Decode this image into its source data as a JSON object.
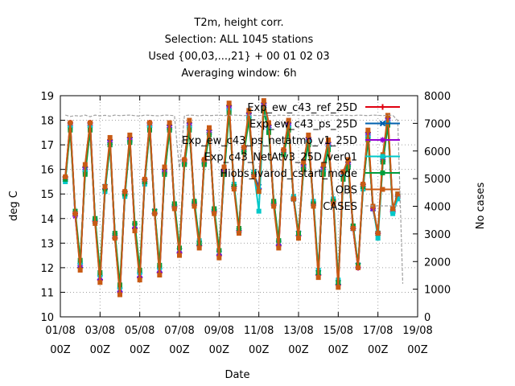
{
  "chart_data": {
    "type": "line",
    "title_lines": [
      "T2m, height corr.",
      "Selection: ALL    1045 stations",
      "Used {00,03,...,21} + 00 01 02 03",
      "Averaging window:  6h"
    ],
    "xlabel": "Date",
    "ylabel": "deg C",
    "y2label": "No cases",
    "ylim": [
      10,
      19
    ],
    "y2lim": [
      0,
      8000
    ],
    "yticks": [
      "10",
      "11",
      "12",
      "13",
      "14",
      "15",
      "16",
      "17",
      "18",
      "19"
    ],
    "y2ticks": [
      "0",
      "1000",
      "2000",
      "3000",
      "4000",
      "5000",
      "6000",
      "7000",
      "8000"
    ],
    "xticks": [
      {
        "date": "01/08",
        "hour": "00Z"
      },
      {
        "date": "03/08",
        "hour": "00Z"
      },
      {
        "date": "05/08",
        "hour": "00Z"
      },
      {
        "date": "07/08",
        "hour": "00Z"
      },
      {
        "date": "09/08",
        "hour": "00Z"
      },
      {
        "date": "11/08",
        "hour": "00Z"
      },
      {
        "date": "13/08",
        "hour": "00Z"
      },
      {
        "date": "15/08",
        "hour": "00Z"
      },
      {
        "date": "17/08",
        "hour": "00Z"
      },
      {
        "date": "19/08",
        "hour": "00Z"
      }
    ],
    "grid": true,
    "legend_position": "top-right",
    "x_unit": "hours since 01/08 00Z",
    "x": [
      6,
      12,
      18,
      24,
      30,
      36,
      42,
      48,
      54,
      60,
      66,
      72,
      78,
      84,
      90,
      96,
      102,
      108,
      114,
      120,
      126,
      132,
      138,
      144,
      150,
      156,
      162,
      168,
      174,
      180,
      186,
      192,
      198,
      204,
      210,
      216,
      222,
      228,
      234,
      240,
      246,
      252,
      258,
      264,
      270,
      276,
      282,
      288,
      294,
      300,
      306,
      312,
      318,
      324,
      330,
      336,
      342,
      348,
      354,
      360,
      366,
      372,
      378,
      384,
      390,
      396,
      402,
      408,
      414,
      420
    ],
    "series": [
      {
        "name": "Exp_ew_c43_ref_25D",
        "color": "#e0000f",
        "marker": "plus",
        "values": [
          15.7,
          17.9,
          14.2,
          12.0,
          16.1,
          17.9,
          13.9,
          11.5,
          15.2,
          17.2,
          13.2,
          11.0,
          15.1,
          17.3,
          13.6,
          11.6,
          15.6,
          17.9,
          14.2,
          11.8,
          16.0,
          17.8,
          14.5,
          12.6,
          16.4,
          17.9,
          14.6,
          12.9,
          16.4,
          17.6,
          14.3,
          12.5,
          16.0,
          18.6,
          15.3,
          13.5,
          16.9,
          18.3,
          15.8,
          15.2,
          18.7,
          17.8,
          14.6,
          12.9,
          16.8,
          17.9,
          14.8,
          13.3,
          16.2,
          17.3,
          14.6,
          11.7,
          16.1,
          17.1,
          14.7,
          11.3,
          15.9,
          16.3,
          13.6,
          12.0,
          15.4,
          17.5,
          14.4,
          13.4,
          16.5,
          18.1,
          14.3,
          14.9,
          null,
          null
        ]
      },
      {
        "name": "Exp_ew_c43_ps_25D",
        "color": "#0060ad",
        "marker": "cross",
        "values": [
          15.6,
          17.8,
          14.2,
          12.1,
          16.0,
          17.8,
          13.9,
          11.6,
          15.3,
          17.1,
          13.3,
          11.1,
          15.0,
          17.2,
          13.7,
          11.7,
          15.5,
          17.8,
          14.3,
          11.9,
          15.9,
          17.7,
          14.5,
          12.7,
          16.3,
          17.8,
          14.6,
          13.0,
          16.3,
          17.5,
          14.3,
          12.6,
          15.9,
          18.5,
          15.3,
          13.5,
          16.8,
          18.2,
          15.8,
          15.3,
          18.6,
          17.7,
          14.6,
          13.0,
          16.7,
          17.8,
          14.8,
          13.4,
          16.1,
          17.2,
          14.6,
          11.8,
          16.0,
          17.0,
          14.7,
          11.4,
          15.8,
          16.2,
          13.6,
          12.1,
          15.3,
          17.4,
          14.4,
          13.4,
          16.4,
          18.0,
          14.3,
          14.9,
          null,
          null
        ]
      },
      {
        "name": "Exp_ew_c43_ps_netatmo_v1_25D",
        "color": "#9400d3",
        "marker": "star",
        "values": [
          15.6,
          17.8,
          14.1,
          12.1,
          16.0,
          17.8,
          13.9,
          11.5,
          15.2,
          17.1,
          13.3,
          11.0,
          15.0,
          17.2,
          13.6,
          11.6,
          15.5,
          17.8,
          14.2,
          11.8,
          15.9,
          17.7,
          14.5,
          12.6,
          16.3,
          17.8,
          14.6,
          12.9,
          16.3,
          17.5,
          14.3,
          12.5,
          15.9,
          18.5,
          15.3,
          13.5,
          16.8,
          18.2,
          15.8,
          15.2,
          18.6,
          17.7,
          14.6,
          12.9,
          16.7,
          17.8,
          14.8,
          13.3,
          16.1,
          17.2,
          14.6,
          11.7,
          16.0,
          17.0,
          14.7,
          11.3,
          15.8,
          16.2,
          13.6,
          12.0,
          15.3,
          17.4,
          14.4,
          13.4,
          16.4,
          18.0,
          14.3,
          14.9,
          null,
          null
        ]
      },
      {
        "name": "Exp_c43_NetAtv3_25D_ver01",
        "color": "#00c8c8",
        "marker": "box",
        "values": [
          15.5,
          17.7,
          14.2,
          12.2,
          15.9,
          17.7,
          14.0,
          11.7,
          15.1,
          17.0,
          13.4,
          11.2,
          14.9,
          17.1,
          13.8,
          11.8,
          15.4,
          17.7,
          14.3,
          12.0,
          15.8,
          17.6,
          14.6,
          12.8,
          16.2,
          17.7,
          14.7,
          13.1,
          16.2,
          17.4,
          14.4,
          12.7,
          15.8,
          18.4,
          15.4,
          13.6,
          16.7,
          18.1,
          15.9,
          14.3,
          18.5,
          17.6,
          14.7,
          13.1,
          16.6,
          17.7,
          14.9,
          13.4,
          16.0,
          17.1,
          14.7,
          11.9,
          15.9,
          16.9,
          14.8,
          11.5,
          15.7,
          16.1,
          13.7,
          12.1,
          15.2,
          17.3,
          14.5,
          13.2,
          16.3,
          17.9,
          14.2,
          14.8,
          null,
          null
        ]
      },
      {
        "name": "Hiobs_ivarod_cstart_mode",
        "color": "#009e3c",
        "marker": "box",
        "values": [
          15.6,
          17.6,
          14.3,
          12.3,
          15.8,
          17.6,
          14.0,
          11.8,
          15.2,
          17.0,
          13.4,
          11.3,
          15.0,
          17.1,
          13.8,
          11.9,
          15.5,
          17.6,
          14.3,
          12.1,
          15.8,
          17.6,
          14.6,
          12.8,
          16.2,
          17.6,
          14.7,
          13.0,
          16.2,
          17.4,
          14.4,
          12.7,
          15.8,
          18.3,
          15.3,
          13.6,
          16.7,
          18.0,
          15.8,
          15.1,
          18.4,
          17.5,
          14.7,
          13.1,
          16.6,
          17.6,
          14.8,
          13.4,
          16.0,
          17.0,
          14.6,
          11.8,
          15.8,
          16.8,
          14.7,
          11.4,
          15.6,
          16.1,
          13.7,
          12.1,
          15.3,
          17.2,
          14.5,
          13.4,
          16.3,
          17.8,
          14.4,
          15.0,
          null,
          null
        ]
      },
      {
        "name": "OBS",
        "color": "#c85a14",
        "marker": "box",
        "values": [
          15.7,
          17.9,
          14.2,
          11.9,
          16.2,
          17.9,
          13.8,
          11.4,
          15.3,
          17.3,
          13.2,
          10.9,
          15.1,
          17.4,
          13.5,
          11.5,
          15.6,
          17.9,
          14.2,
          11.7,
          16.1,
          17.9,
          14.4,
          12.5,
          16.4,
          18.0,
          14.5,
          12.8,
          16.4,
          17.7,
          14.2,
          12.4,
          16.1,
          18.7,
          15.2,
          13.4,
          16.9,
          18.4,
          15.7,
          15.1,
          18.8,
          17.9,
          14.5,
          12.8,
          16.8,
          18.0,
          14.8,
          13.2,
          16.3,
          17.4,
          14.5,
          11.6,
          16.2,
          17.2,
          14.6,
          11.2,
          15.9,
          16.4,
          13.6,
          12.0,
          15.4,
          17.6,
          14.5,
          13.4,
          16.6,
          18.2,
          14.4,
          15.0,
          null,
          null
        ]
      },
      {
        "name": "CASES",
        "color": "#a0a0a0",
        "marker": "none",
        "axis": "y2",
        "values": [
          7300,
          7250,
          7280,
          7260,
          7300,
          7240,
          7300,
          7270,
          7290,
          7260,
          7300,
          7280,
          7290,
          7300,
          7280,
          7260,
          7300,
          7290,
          7280,
          7270,
          7300,
          7290,
          7280,
          5300,
          7280,
          7300,
          7290,
          7270,
          7300,
          7280,
          7290,
          7300,
          7280,
          7290,
          7300,
          7290,
          7280,
          7300,
          7290,
          7280,
          7300,
          7290,
          7280,
          7300,
          7290,
          7280,
          7300,
          7290,
          7280,
          7290,
          7300,
          7290,
          7280,
          7300,
          7290,
          7280,
          7300,
          7290,
          7280,
          7300,
          7290,
          7280,
          7300,
          7290,
          7280,
          7300,
          7290,
          7100,
          1200,
          null
        ]
      }
    ]
  }
}
